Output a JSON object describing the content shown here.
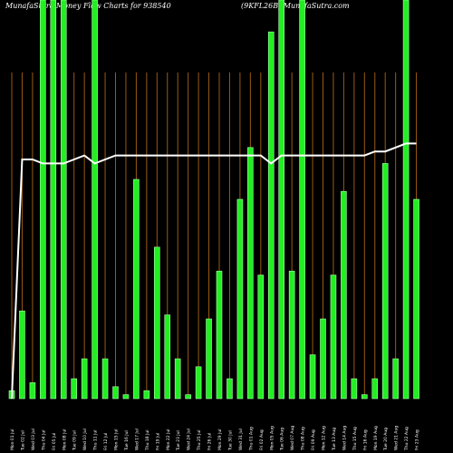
{
  "header": {
    "title_left": "MunafaSutra Money Flow Charts for 938540",
    "title_right": "(9KFL26B) MunafaSutra.com"
  },
  "colors": {
    "background": "#000000",
    "bar": "#22ee22",
    "bar_edge": "#aaffaa",
    "grid": "#9a5a12",
    "line": "#ffffff",
    "text": "#ffffff"
  },
  "chart_data": {
    "type": "bar",
    "ylim": [
      0,
      100
    ],
    "categories": [
      "Mon 01 Jul",
      "Tue 02 Jul",
      "Wed 03 Jul",
      "Thu 04 Jul",
      "Fri 05 Jul",
      "Mon 08 Jul",
      "Tue 09 Jul",
      "Wed 10 Jul",
      "Thu 11 Jul",
      "Fri 12 Jul",
      "Mon 15 Jul",
      "Tue 16 Jul",
      "Wed 17 Jul",
      "Thu 18 Jul",
      "Fri 19 Jul",
      "Mon 22 Jul",
      "Tue 23 Jul",
      "Wed 24 Jul",
      "Thu 25 Jul",
      "Fri 26 Jul",
      "Mon 29 Jul",
      "Tue 30 Jul",
      "Wed 31 Jul",
      "Thu 01 Aug",
      "Fri 02 Aug",
      "Mon 05 Aug",
      "Tue 06 Aug",
      "Wed 07 Aug",
      "Thu 08 Aug",
      "Fri 09 Aug",
      "Mon 12 Aug",
      "Tue 13 Aug",
      "Wed 14 Aug",
      "Thu 15 Aug",
      "Fri 16 Aug",
      "Mon 19 Aug",
      "Tue 20 Aug",
      "Wed 21 Aug",
      "Thu 22 Aug",
      "Fri 23 Aug"
    ],
    "series": [
      {
        "type": "bar",
        "values": [
          2,
          22,
          4,
          100,
          100,
          100,
          5,
          10,
          100,
          10,
          3,
          1,
          55,
          2,
          38,
          21,
          10,
          1,
          8,
          20,
          32,
          5,
          50,
          63,
          31,
          92,
          100,
          32,
          100,
          11,
          20,
          31,
          52,
          5,
          1,
          5,
          59,
          10,
          100,
          50
        ]
      },
      {
        "type": "line",
        "values": [
          0,
          60,
          60,
          59,
          59,
          59,
          60,
          61,
          59,
          60,
          61,
          61,
          61,
          61,
          61,
          61,
          61,
          61,
          61,
          61,
          61,
          61,
          61,
          61,
          61,
          59,
          61,
          61,
          61,
          61,
          61,
          61,
          61,
          61,
          61,
          62,
          62,
          63,
          64,
          64
        ]
      }
    ]
  }
}
